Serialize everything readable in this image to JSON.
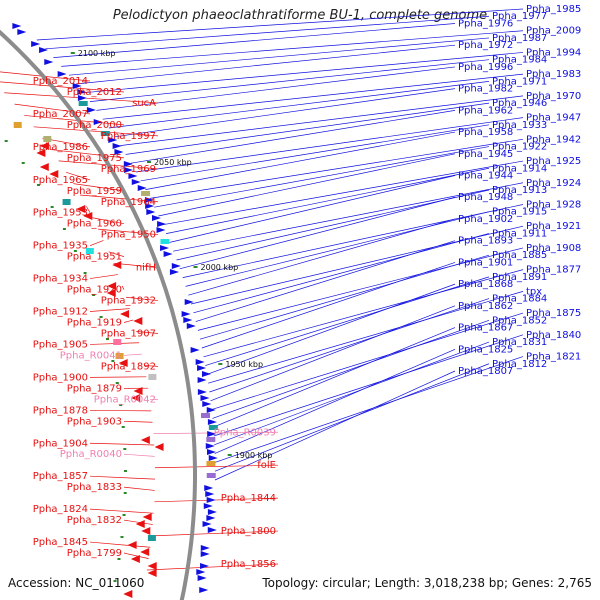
{
  "title": "Pelodictyon phaeoclathratiforme BU-1, complete genome",
  "footer": {
    "accession": "Accession: NC_011060",
    "stats": "Topology: circular; Length: 3,018,238 bp; Genes: 2,765"
  },
  "colors": {
    "forward": "#1010e0",
    "reverse": "#e81010",
    "rna": "#f080b0",
    "backbone": "#8c8c8c",
    "tick": "#2a8a2a"
  },
  "scale_labels": [
    "2100 kbp",
    "2050 kbp",
    "2000 kbp",
    "1950 kbp",
    "1900 kbp"
  ],
  "right_labels": [
    "Ppha_1985",
    "Ppha_1977",
    "Ppha_1976",
    "Ppha_2009",
    "Ppha_1987",
    "Ppha_1972",
    "Ppha_1994",
    "Ppha_1984",
    "Ppha_1996",
    "Ppha_1983",
    "Ppha_1971",
    "Ppha_1982",
    "Ppha_1970",
    "Ppha_1946",
    "Ppha_1962",
    "Ppha_1947",
    "Ppha_1933",
    "Ppha_1958",
    "Ppha_1942",
    "Ppha_1922",
    "Ppha_1945",
    "Ppha_1925",
    "Ppha_1914",
    "Ppha_1944",
    "Ppha_1924",
    "Ppha_1913",
    "Ppha_1948",
    "Ppha_1928",
    "Ppha_1915",
    "Ppha_1902",
    "Ppha_1921",
    "Ppha_1911",
    "Ppha_1893",
    "Ppha_1908",
    "Ppha_1885",
    "Ppha_1901",
    "Ppha_1877",
    "Ppha_1891",
    "Ppha_1868",
    "tpx",
    "Ppha_1884",
    "Ppha_1862",
    "Ppha_1875",
    "Ppha_1852",
    "Ppha_1867",
    "Ppha_1840",
    "Ppha_1831",
    "Ppha_1825",
    "Ppha_1821",
    "Ppha_1812",
    "Ppha_1807"
  ],
  "left_labels": [
    "Ppha_2014",
    "Ppha_2012",
    "sucA",
    "Ppha_2007",
    "Ppha_2000",
    "Ppha_1997",
    "Ppha_1986",
    "Ppha_1975",
    "Ppha_1969",
    "Ppha_1965",
    "Ppha_1959",
    "Ppha_1964",
    "Ppha_1953",
    "Ppha_1960",
    "Ppha_1950",
    "Ppha_1935",
    "Ppha_1951",
    "nifH",
    "Ppha_1934",
    "Ppha_1920",
    "Ppha_1932",
    "Ppha_1912",
    "Ppha_1919",
    "Ppha_1907",
    "Ppha_1905",
    "Ppha_R0041",
    "Ppha_1892",
    "Ppha_1900",
    "Ppha_1879",
    "Ppha_R0042",
    "Ppha_1878",
    "Ppha_1903",
    "Ppha_R0039",
    "Ppha_1904",
    "Ppha_R0040",
    "folE",
    "Ppha_1857",
    "Ppha_1833",
    "Ppha_1844",
    "Ppha_1824",
    "Ppha_1832",
    "Ppha_1800",
    "Ppha_1845",
    "Ppha_1799",
    "Ppha_1856"
  ],
  "rna_labels": [
    "Ppha_R0041",
    "Ppha_R0042",
    "Ppha_R0039",
    "Ppha_R0040"
  ]
}
